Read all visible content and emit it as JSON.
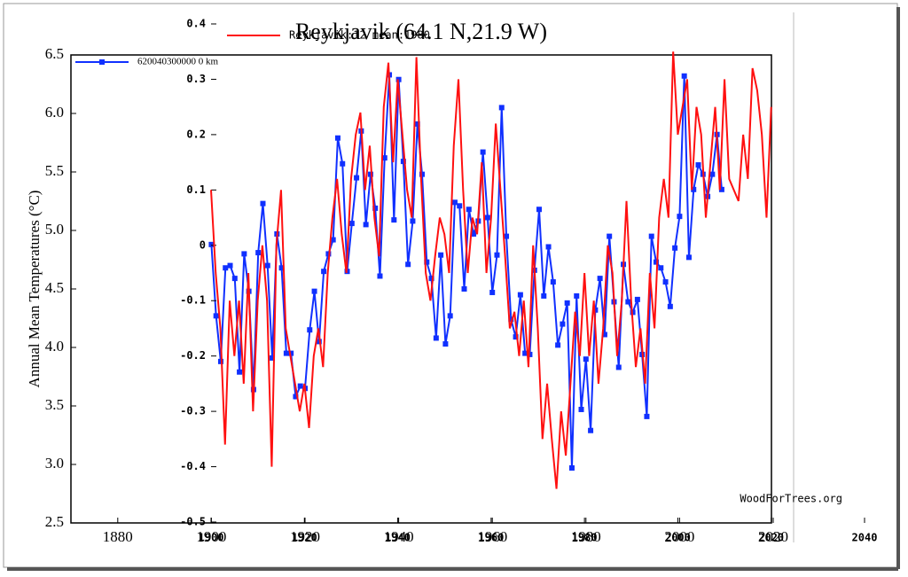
{
  "chart_data": [
    {
      "type": "line",
      "title": "Reykjavik (64.1 N,21.9 W)",
      "y_label": "Annual Mean Temperatures (°C)",
      "xlim": [
        1870,
        2020
      ],
      "xticks": [
        1880,
        1900,
        1920,
        1940,
        1960,
        1980,
        2000,
        2020
      ],
      "ylim": [
        2.5,
        6.5
      ],
      "yticks": [
        {
          "value": 2.5,
          "label": "2.5"
        },
        {
          "value": 3,
          "label": "3.0"
        },
        {
          "value": 3.5,
          "label": "3.5"
        },
        {
          "value": 4,
          "label": "4.0"
        },
        {
          "value": 4.5,
          "label": "4.5"
        },
        {
          "value": 5,
          "label": "5.0"
        },
        {
          "value": 5.5,
          "label": "5.5"
        },
        {
          "value": 6,
          "label": "6.0"
        },
        {
          "value": 6.5,
          "label": "6.5"
        }
      ],
      "series": [
        {
          "name": "620040300000 0 km",
          "color": "#1030ff",
          "x": [
            1900,
            1901,
            1902,
            1903,
            1904,
            1905,
            1906,
            1907,
            1908,
            1909,
            1910,
            1911,
            1912,
            1913,
            1914,
            1915,
            1916,
            1917,
            1918,
            1919,
            1920,
            1921,
            1922,
            1923,
            1924,
            1925,
            1926,
            1927,
            1928,
            1929,
            1930,
            1931,
            1932,
            1933,
            1934,
            1935,
            1936,
            1937,
            1938,
            1939,
            1940,
            1941,
            1942,
            1943,
            1944,
            1945,
            1946,
            1947,
            1948,
            1949,
            1950,
            1951,
            1952,
            1953,
            1954,
            1955,
            1956,
            1957,
            1958,
            1959,
            1960,
            1961,
            1962,
            1963,
            1964,
            1965,
            1966,
            1967,
            1968,
            1969,
            1970,
            1971,
            1972,
            1973,
            1974,
            1975,
            1976,
            1977,
            1978,
            1979,
            1980,
            1981,
            1982,
            1983,
            1984,
            1985,
            1986,
            1987,
            1988,
            1989,
            1990,
            1991,
            1992,
            1993,
            1994,
            1995,
            1996,
            1997,
            1998,
            1999,
            2000,
            2001,
            2002,
            2003,
            2004,
            2005,
            2006,
            2007,
            2008,
            2009
          ],
          "values": [
            4.88,
            4.27,
            3.88,
            4.68,
            4.7,
            4.59,
            3.79,
            4.8,
            4.48,
            3.64,
            4.81,
            5.23,
            4.7,
            3.91,
            4.97,
            4.68,
            3.95,
            3.95,
            3.58,
            3.67,
            3.65,
            4.15,
            4.48,
            4.05,
            4.65,
            4.8,
            4.92,
            5.79,
            5.57,
            4.65,
            5.06,
            5.45,
            5.85,
            5.05,
            5.48,
            5.19,
            4.61,
            5.62,
            6.33,
            5.09,
            6.29,
            5.59,
            4.71,
            5.08,
            5.91,
            5.48,
            4.73,
            4.59,
            4.08,
            4.79,
            4.03,
            4.27,
            5.24,
            5.21,
            4.5,
            5.18,
            4.97,
            5.08,
            5.67,
            5.11,
            4.47,
            4.79,
            6.05,
            4.95,
            4.24,
            4.09,
            4.45,
            3.95,
            3.94,
            4.66,
            5.18,
            4.44,
            4.86,
            4.56,
            4.02,
            4.2,
            4.38,
            2.97,
            4.44,
            3.47,
            3.9,
            3.29,
            4.32,
            4.59,
            4.11,
            4.95,
            4.39,
            3.83,
            4.71,
            4.39,
            4.3,
            4.41,
            3.94,
            3.41,
            4.95,
            4.73,
            4.68,
            4.56,
            4.35,
            4.85,
            5.12,
            6.32,
            4.77,
            5.35,
            5.56,
            5.48,
            5.29,
            5.48,
            5.82,
            5.35
          ]
        }
      ]
    },
    {
      "type": "line",
      "annotation": "WoodForTrees.org",
      "xlim": [
        1900,
        2040
      ],
      "xticks": [
        1900,
        1920,
        1940,
        1960,
        1980,
        2000,
        2020,
        2040
      ],
      "ylim": [
        -0.5,
        0.4
      ],
      "yticks": [
        -0.5,
        -0.4,
        -0.3,
        -0.2,
        -0.1,
        0,
        0.1,
        0.2,
        0.3,
        0.4
      ],
      "series": [
        {
          "name": "Reykjavik:12 mean:1980",
          "color": "#ff1010",
          "x": [
            1900,
            1901,
            1902,
            1903,
            1904,
            1905,
            1906,
            1907,
            1908,
            1909,
            1910,
            1911,
            1912,
            1913,
            1914,
            1915,
            1916,
            1917,
            1918,
            1919,
            1920,
            1921,
            1922,
            1923,
            1924,
            1925,
            1926,
            1927,
            1928,
            1929,
            1930,
            1931,
            1932,
            1933,
            1934,
            1935,
            1936,
            1937,
            1938,
            1939,
            1940,
            1941,
            1942,
            1943,
            1944,
            1945,
            1946,
            1947,
            1948,
            1949,
            1950,
            1951,
            1952,
            1953,
            1954,
            1955,
            1956,
            1957,
            1958,
            1959,
            1960,
            1961,
            1962,
            1963,
            1964,
            1965,
            1966,
            1967,
            1968,
            1969,
            1970,
            1971,
            1972,
            1973,
            1974,
            1975,
            1976,
            1977,
            1978,
            1979,
            1980,
            1981,
            1982,
            1983,
            1984,
            1985,
            1986,
            1987,
            1988,
            1989,
            1990,
            1991,
            1992,
            1993,
            1994,
            1995,
            1996,
            1997,
            1998,
            1999,
            2000,
            2001,
            2002,
            2003,
            2004,
            2005,
            2006,
            2007,
            2008,
            2009,
            2010,
            2011,
            2012,
            2013,
            2014,
            2015,
            2016,
            2017,
            2018,
            2019,
            2020
          ],
          "values": [
            0.1,
            -0.05,
            -0.15,
            -0.36,
            -0.1,
            -0.2,
            -0.1,
            -0.25,
            -0.05,
            -0.3,
            -0.1,
            0,
            -0.1,
            -0.4,
            0,
            0.1,
            -0.15,
            -0.2,
            -0.25,
            -0.3,
            -0.25,
            -0.33,
            -0.2,
            -0.15,
            -0.22,
            -0.05,
            0.05,
            0.12,
            0.02,
            -0.05,
            0.12,
            0.2,
            0.24,
            0.1,
            0.18,
            0.05,
            -0.02,
            0.25,
            0.33,
            0.15,
            0.3,
            0.2,
            0.1,
            0.05,
            0.34,
            0.12,
            -0.05,
            -0.1,
            -0.02,
            0.05,
            0.02,
            -0.05,
            0.18,
            0.3,
            0.1,
            -0.05,
            0.05,
            0.02,
            0.15,
            -0.05,
            0.05,
            0.22,
            0.1,
            -0.02,
            -0.15,
            -0.12,
            -0.2,
            -0.1,
            -0.22,
            0,
            -0.15,
            -0.35,
            -0.25,
            -0.35,
            -0.44,
            -0.3,
            -0.38,
            -0.25,
            -0.12,
            -0.2,
            -0.05,
            -0.2,
            -0.1,
            -0.25,
            -0.15,
            0,
            -0.05,
            -0.2,
            -0.1,
            0.08,
            -0.1,
            -0.22,
            -0.15,
            -0.25,
            -0.05,
            -0.15,
            0.05,
            0.12,
            0.05,
            0.35,
            0.2,
            0.25,
            0.3,
            0.1,
            0.25,
            0.2,
            0.05,
            0.15,
            0.25,
            0.1,
            0.3,
            0.12,
            0.1,
            0.08,
            0.2,
            0.12,
            0.32,
            0.28,
            0.2,
            0.05,
            0.25
          ]
        }
      ]
    }
  ]
}
